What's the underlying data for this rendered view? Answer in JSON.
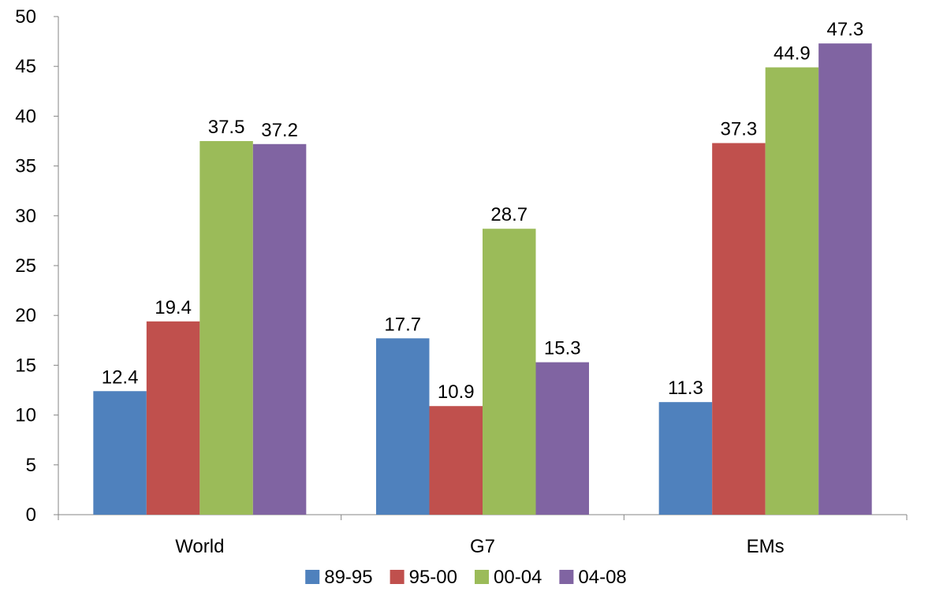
{
  "chart_data": {
    "type": "bar",
    "title": "",
    "xlabel": "",
    "ylabel": "",
    "categories": [
      "World",
      "G7",
      "EMs"
    ],
    "ylim": [
      0,
      50
    ],
    "yticks": [
      0,
      5,
      10,
      15,
      20,
      25,
      30,
      35,
      40,
      45,
      50
    ],
    "grid": false,
    "legend_position": "bottom",
    "series": [
      {
        "name": "89-95",
        "color": "#4F81BD",
        "values": [
          12.4,
          17.7,
          11.3
        ],
        "labels": [
          "12.4",
          "17.7",
          "11.3"
        ]
      },
      {
        "name": "95-00",
        "color": "#C0504D",
        "values": [
          19.4,
          10.9,
          37.3
        ],
        "labels": [
          "19.4",
          "10.9",
          "37.3"
        ]
      },
      {
        "name": "00-04",
        "color": "#9BBB59",
        "values": [
          37.5,
          28.7,
          44.9
        ],
        "labels": [
          "37.5",
          "28.7",
          "44.9"
        ]
      },
      {
        "name": "04-08",
        "color": "#8064A2",
        "values": [
          37.2,
          15.3,
          47.3
        ],
        "labels": [
          "37.2",
          "15.3",
          "47.3"
        ]
      }
    ]
  }
}
